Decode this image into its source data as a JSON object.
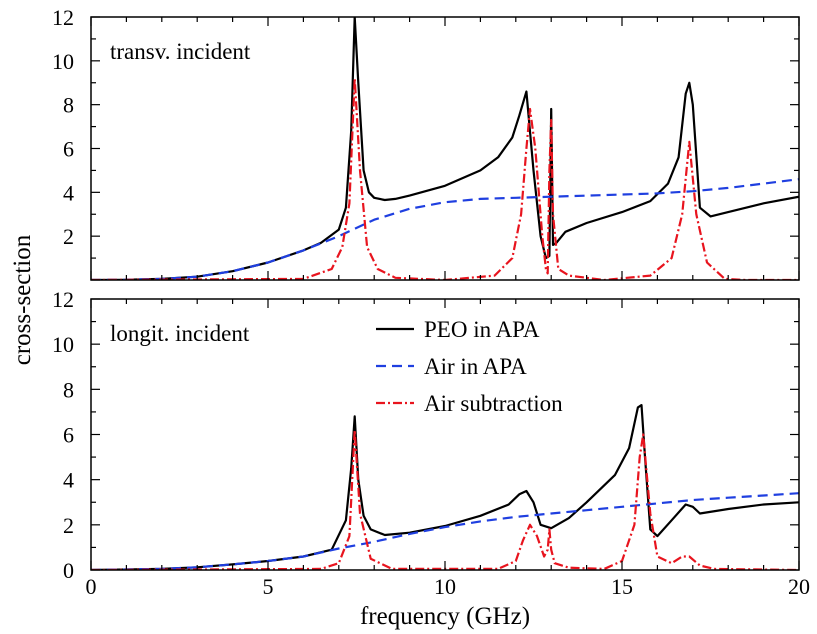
{
  "colors": {
    "peo": "#000000",
    "air": "#1f3fe0",
    "sub": "#e8141e"
  },
  "chart_data": [
    {
      "type": "line",
      "panel_label": "transv. incident",
      "xlabel": "frequency (GHz)",
      "ylabel": "cross-section",
      "xlim": [
        0,
        20
      ],
      "ylim": [
        0,
        12
      ],
      "x_ticks": [
        0,
        5,
        10,
        15,
        20
      ],
      "y_ticks": [
        2,
        4,
        6,
        8,
        10,
        12
      ],
      "series": [
        {
          "name": "PEO in APA",
          "style": "solid",
          "x": [
            0,
            1,
            2,
            3,
            4,
            5,
            6,
            6.5,
            7,
            7.2,
            7.35,
            7.45,
            7.55,
            7.7,
            7.85,
            8.0,
            8.3,
            8.6,
            9,
            10,
            11,
            11.5,
            11.9,
            12.1,
            12.3,
            12.5,
            12.7,
            12.85,
            12.95,
            13.0,
            13.05,
            13.15,
            13.4,
            14,
            15,
            15.8,
            16.3,
            16.6,
            16.8,
            16.9,
            17.0,
            17.2,
            17.5,
            18,
            19,
            20
          ],
          "y": [
            0,
            0.01,
            0.05,
            0.15,
            0.4,
            0.8,
            1.35,
            1.7,
            2.3,
            3.3,
            6.8,
            12.0,
            9.0,
            5.0,
            4.0,
            3.75,
            3.65,
            3.7,
            3.85,
            4.3,
            5.0,
            5.6,
            6.5,
            7.5,
            8.6,
            5.0,
            2.0,
            1.0,
            1.1,
            7.8,
            1.6,
            1.7,
            2.2,
            2.6,
            3.1,
            3.6,
            4.4,
            5.6,
            8.5,
            9.0,
            8.0,
            3.3,
            2.9,
            3.1,
            3.5,
            3.8
          ]
        },
        {
          "name": "Air in APA",
          "style": "dashed",
          "x": [
            0,
            1,
            2,
            3,
            4,
            5,
            6,
            7,
            8,
            9,
            10,
            11,
            12,
            13,
            14,
            15,
            16,
            17,
            18,
            19,
            20
          ],
          "y": [
            0,
            0.01,
            0.05,
            0.15,
            0.4,
            0.8,
            1.35,
            2.0,
            2.75,
            3.25,
            3.55,
            3.7,
            3.75,
            3.8,
            3.85,
            3.9,
            3.95,
            4.05,
            4.2,
            4.4,
            4.6
          ]
        },
        {
          "name": "Air subtraction",
          "style": "dashdot",
          "x": [
            0,
            6.0,
            6.8,
            7.1,
            7.3,
            7.45,
            7.6,
            7.8,
            8.1,
            8.6,
            10,
            11.4,
            11.9,
            12.15,
            12.3,
            12.4,
            12.55,
            12.75,
            12.85,
            12.9,
            12.95,
            13.0,
            13.05,
            13.2,
            13.5,
            14.5,
            15.8,
            16.4,
            16.7,
            16.9,
            17.1,
            17.4,
            17.6,
            17.9,
            18.5,
            20
          ],
          "y": [
            0,
            0.05,
            0.5,
            1.5,
            3.5,
            9.2,
            5.0,
            1.5,
            0.5,
            0.1,
            0,
            0.2,
            1.0,
            3.0,
            6.0,
            7.8,
            6.0,
            2.0,
            0.5,
            0.3,
            5.0,
            7.3,
            3.0,
            0.5,
            0.2,
            0,
            0.2,
            1.0,
            3.0,
            6.3,
            3.0,
            0.8,
            0.5,
            0.05,
            0,
            0
          ]
        }
      ]
    },
    {
      "type": "line",
      "panel_label": "longit. incident",
      "xlabel": "frequency (GHz)",
      "ylabel": "cross-section",
      "xlim": [
        0,
        20
      ],
      "ylim": [
        0,
        12
      ],
      "x_ticks": [
        0,
        5,
        10,
        15,
        20
      ],
      "y_ticks": [
        0,
        2,
        4,
        6,
        8,
        10,
        12
      ],
      "legend": {
        "placement": "top-right",
        "entries": [
          "PEO in APA",
          "Air in APA",
          "Air subtraction"
        ]
      },
      "series": [
        {
          "name": "PEO in APA",
          "style": "solid",
          "x": [
            0,
            1,
            2,
            3,
            4,
            5,
            6,
            6.8,
            7.2,
            7.35,
            7.45,
            7.55,
            7.7,
            7.9,
            8.3,
            9,
            10,
            11,
            11.8,
            12.1,
            12.3,
            12.5,
            12.7,
            13,
            13.5,
            14,
            14.8,
            15.2,
            15.45,
            15.55,
            15.65,
            15.8,
            16.0,
            16.4,
            16.8,
            17.0,
            17.2,
            18,
            19,
            20
          ],
          "y": [
            0,
            0.02,
            0.05,
            0.12,
            0.25,
            0.4,
            0.6,
            0.9,
            2.2,
            4.5,
            6.8,
            4.0,
            2.4,
            1.8,
            1.55,
            1.65,
            1.95,
            2.4,
            2.9,
            3.35,
            3.5,
            3.0,
            2.0,
            1.85,
            2.3,
            3.0,
            4.2,
            5.4,
            7.2,
            7.3,
            5.0,
            1.8,
            1.5,
            2.2,
            2.9,
            2.8,
            2.5,
            2.7,
            2.9,
            3.0
          ]
        },
        {
          "name": "Air in APA",
          "style": "dashed",
          "x": [
            0,
            1,
            2,
            3,
            4,
            5,
            6,
            7,
            8,
            9,
            10,
            11,
            12,
            13,
            14,
            15,
            16,
            17,
            18,
            19,
            20
          ],
          "y": [
            0,
            0.02,
            0.05,
            0.12,
            0.25,
            0.4,
            0.6,
            0.95,
            1.25,
            1.6,
            1.9,
            2.15,
            2.35,
            2.5,
            2.65,
            2.8,
            2.95,
            3.1,
            3.2,
            3.3,
            3.4
          ]
        },
        {
          "name": "Air subtraction",
          "style": "dashdot",
          "x": [
            0,
            6.5,
            7.0,
            7.3,
            7.45,
            7.6,
            7.9,
            8.5,
            11.5,
            12.0,
            12.2,
            12.4,
            12.6,
            12.8,
            12.9,
            12.95,
            13.0,
            13.1,
            13.5,
            14.5,
            15.0,
            15.35,
            15.5,
            15.6,
            15.8,
            16.0,
            16.4,
            16.7,
            16.9,
            17.2,
            17.6,
            20
          ],
          "y": [
            0,
            0.05,
            0.3,
            1.5,
            6.2,
            2.5,
            0.5,
            0.05,
            0.05,
            0.4,
            1.3,
            2.0,
            1.5,
            0.6,
            0.9,
            1.8,
            0.9,
            0.3,
            0.1,
            0.05,
            0.4,
            2.0,
            5.0,
            6.0,
            2.5,
            0.6,
            0.3,
            0.6,
            0.6,
            0.2,
            0.05,
            0
          ]
        }
      ]
    }
  ]
}
